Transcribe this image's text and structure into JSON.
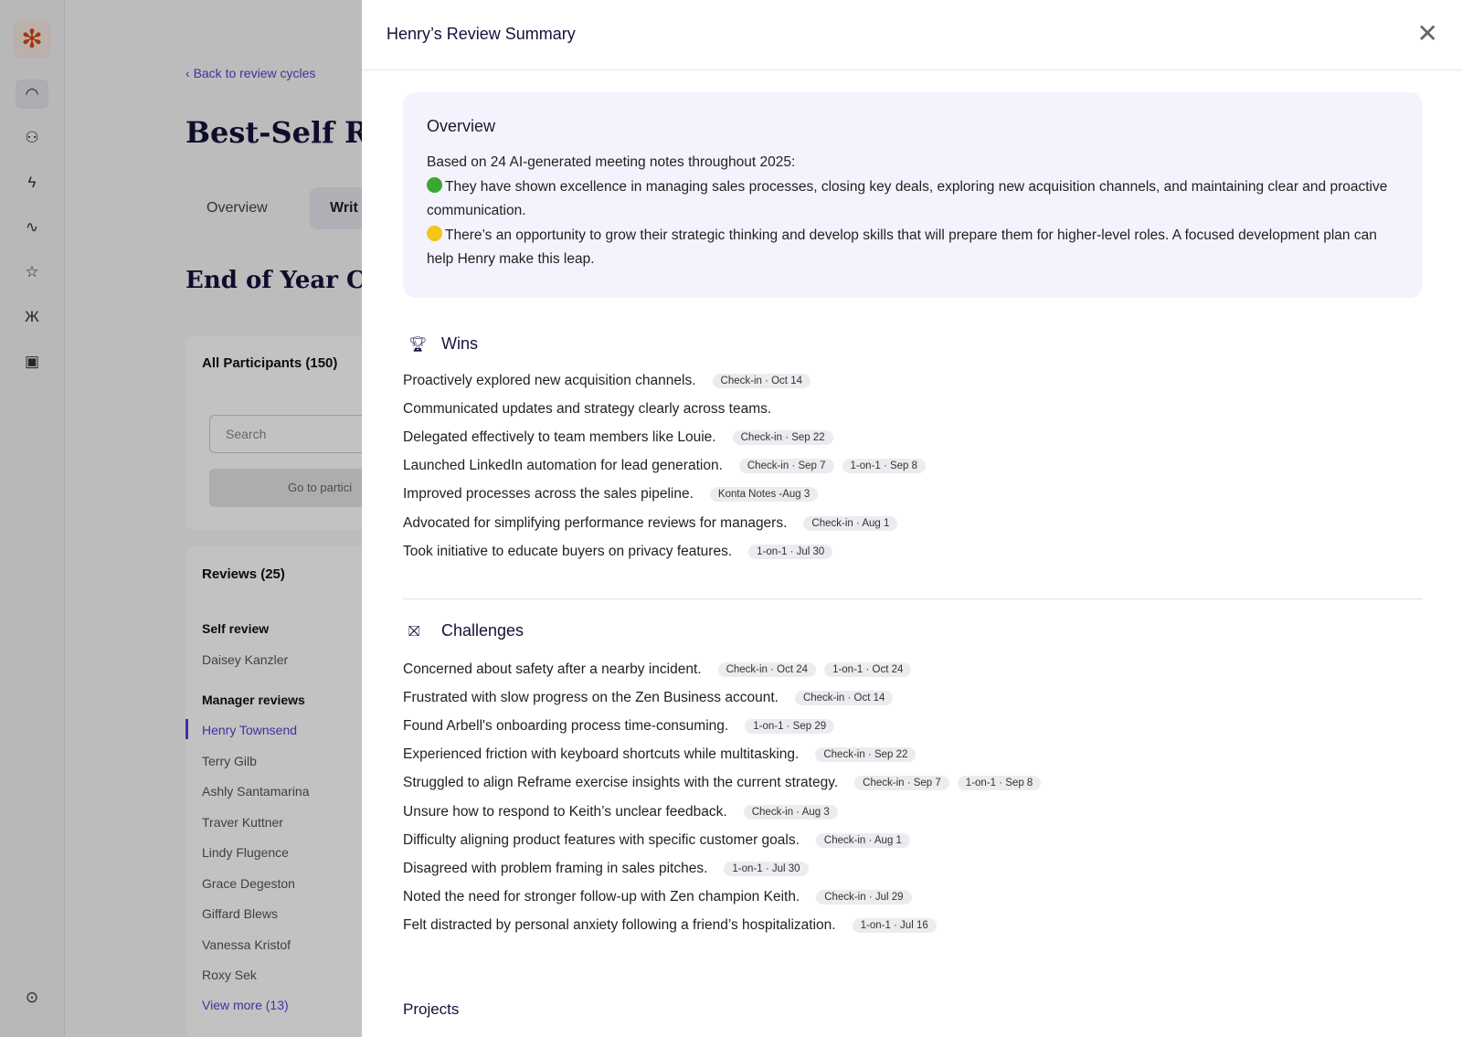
{
  "rail": {
    "icons": [
      "logo-icon",
      "dashboard-icon",
      "people-icon",
      "lightning-icon",
      "activity-icon",
      "review-icon",
      "butterfly-icon",
      "gift-icon",
      "expand-icon"
    ]
  },
  "background": {
    "back_link": "Back to review cycles",
    "title": "Best-Self Re",
    "tabs": [
      "Overview",
      "Writ"
    ],
    "cycle_title": "End of Year Cy",
    "participants": "All Participants (150)",
    "search_placeholder": "Search",
    "go_button": "Go to partici",
    "reviews_header": "Reviews (25)",
    "self_review_label": "Self review",
    "self_reviewer": "Daisey Kanzler",
    "manager_reviews_label": "Manager reviews",
    "managers": [
      "Henry Townsend",
      "Terry Gilb",
      "Ashly Santamarina",
      "Traver Kuttner",
      "Lindy Flugence",
      "Grace Degeston",
      "Giffard Blews",
      "Vanessa Kristof",
      "Roxy Sek"
    ],
    "view_more": "View more (13)"
  },
  "drawer": {
    "title": "Henry’s Review Summary",
    "overview": {
      "heading": "Overview",
      "intro": "Based on 24 AI-generated meeting notes throughout 2025:",
      "strength": "They have shown excellence in managing sales processes, closing key deals, exploring new acquisition channels, and maintaining clear and proactive communication.",
      "growth": "There’s an opportunity to grow their strategic thinking and develop skills that will prepare them for higher-level roles. A focused development plan can help Henry make this leap.",
      "colors": {
        "green": "#3aa832",
        "yellow": "#f5c518"
      }
    },
    "wins": {
      "heading": "Wins",
      "items": [
        {
          "text": "Proactively explored new acquisition channels.",
          "chips": [
            "Check-in · Oct 14"
          ]
        },
        {
          "text": "Communicated updates and strategy clearly across teams.",
          "chips": []
        },
        {
          "text": "Delegated effectively to team members like Louie.",
          "chips": [
            "Check-in · Sep 22"
          ]
        },
        {
          "text": "Launched LinkedIn automation for lead generation.",
          "chips": [
            "Check-in · Sep 7",
            "1-on-1 · Sep 8"
          ]
        },
        {
          "text": "Improved processes across the sales pipeline.",
          "chips": [
            "Konta Notes -Aug 3"
          ]
        },
        {
          "text": "Advocated for simplifying performance reviews for managers.",
          "chips": [
            "Check-in · Aug 1"
          ]
        },
        {
          "text": "Took initiative to educate buyers on privacy features.",
          "chips": [
            "1-on-1 · Jul 30"
          ]
        }
      ]
    },
    "challenges": {
      "heading": "Challenges",
      "items": [
        {
          "text": "Concerned about safety after a nearby incident.",
          "chips": [
            "Check-in · Oct 24",
            "1-on-1 · Oct 24"
          ]
        },
        {
          "text": "Frustrated with slow progress on the Zen Business account.",
          "chips": [
            "Check-in · Oct 14"
          ]
        },
        {
          "text": "Found Arbell's onboarding process time-consuming.",
          "chips": [
            "1-on-1 · Sep 29"
          ]
        },
        {
          "text": "Experienced friction with keyboard shortcuts while multitasking.",
          "chips": [
            "Check-in · Sep 22"
          ]
        },
        {
          "text": "Struggled to align Reframe exercise insights with the current strategy.",
          "chips": [
            "Check-in · Sep 7",
            "1-on-1 · Sep 8"
          ]
        },
        {
          "text": "Unsure how to respond to Keith’s unclear feedback.",
          "chips": [
            "Check-in · Aug 3"
          ]
        },
        {
          "text": "Difficulty aligning product features with specific customer goals.",
          "chips": [
            "Check-in · Aug 1"
          ]
        },
        {
          "text": "Disagreed with problem framing in sales pitches.",
          "chips": [
            "1-on-1 · Jul 30"
          ]
        },
        {
          "text": "Noted the need for stronger follow-up with Zen champion Keith.",
          "chips": [
            "Check-in · Jul 29"
          ]
        },
        {
          "text": "Felt distracted by personal anxiety following a friend’s hospitalization.",
          "chips": [
            "1-on-1 · Jul 16"
          ]
        }
      ]
    },
    "projects": {
      "heading": "Projects"
    }
  }
}
